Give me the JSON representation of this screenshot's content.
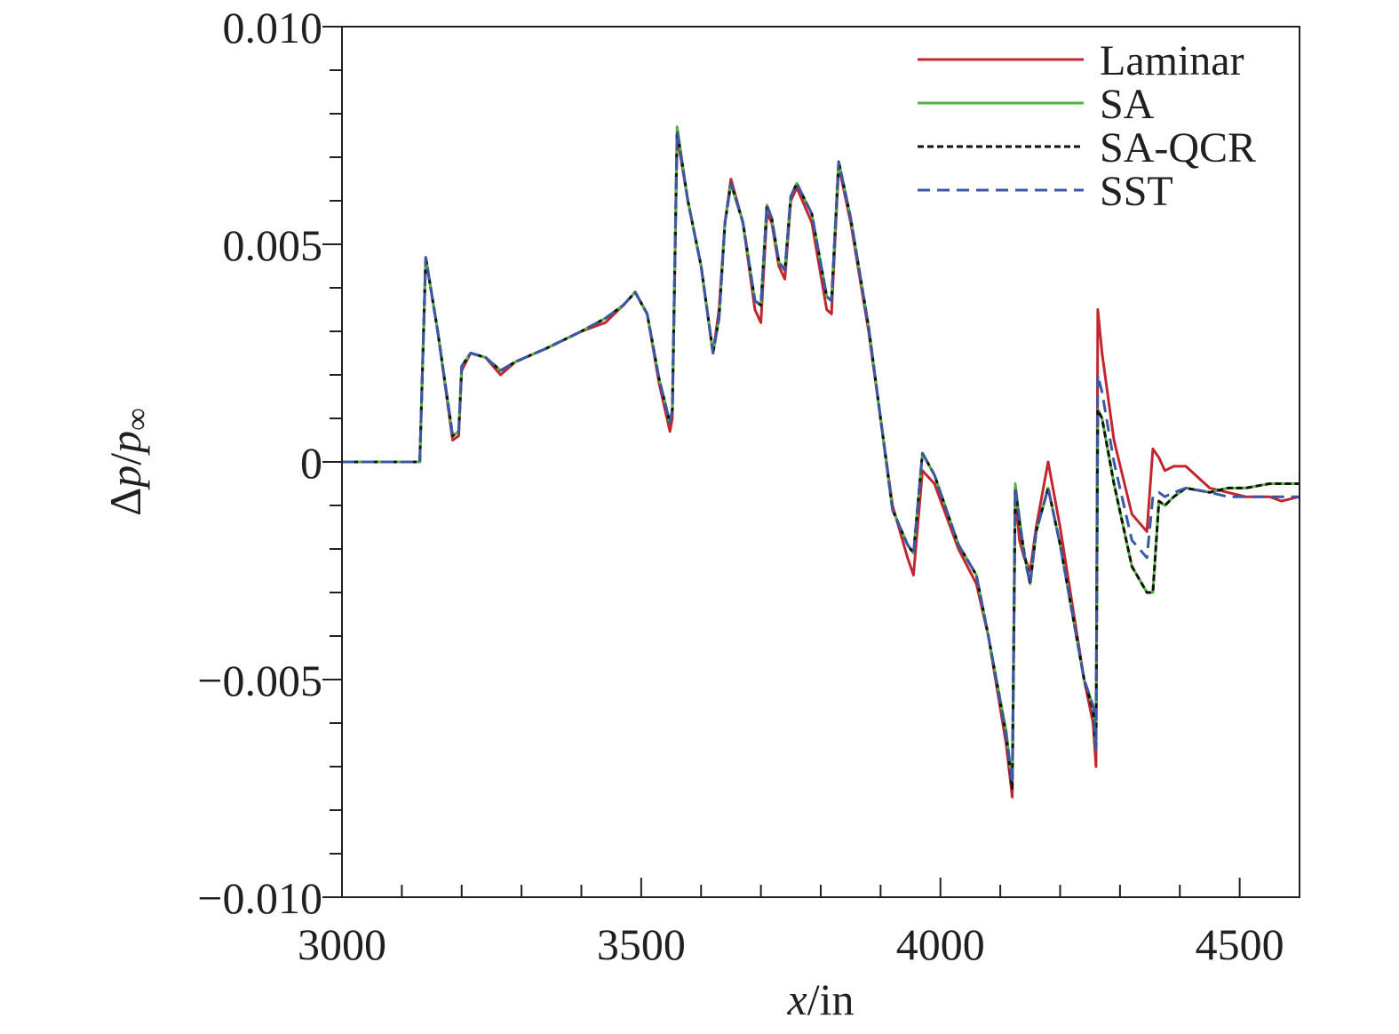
{
  "chart_data": {
    "type": "line",
    "title": "",
    "xlabel": {
      "var": "x",
      "unit": "/in"
    },
    "ylabel": {
      "delta": "Δ",
      "var": "p",
      "slash": "/",
      "var2": "p",
      "sub": "∞"
    },
    "xlim": [
      3000,
      4600
    ],
    "ylim": [
      -0.01,
      0.01
    ],
    "x_ticks": [
      3000,
      3500,
      4000,
      4500
    ],
    "x_tick_labels": [
      "3000",
      "3500",
      "4000",
      "4500"
    ],
    "x_minor_step": 100,
    "y_ticks": [
      -0.01,
      -0.005,
      0,
      0.005,
      0.01
    ],
    "y_tick_labels": [
      "−0.010",
      "−0.005",
      "0",
      "0.005",
      "0.010"
    ],
    "y_minor_step": 0.001,
    "grid": false,
    "legend_position": "top-right",
    "series": [
      {
        "name": "Laminar",
        "color": "#c1272d",
        "dash": "solid",
        "x": [
          3000,
          3120,
          3130,
          3140,
          3160,
          3185,
          3195,
          3200,
          3215,
          3240,
          3265,
          3290,
          3340,
          3400,
          3440,
          3470,
          3490,
          3510,
          3530,
          3548,
          3552,
          3560,
          3578,
          3600,
          3620,
          3630,
          3640,
          3650,
          3670,
          3690,
          3700,
          3710,
          3718,
          3730,
          3740,
          3750,
          3760,
          3785,
          3810,
          3818,
          3830,
          3850,
          3880,
          3920,
          3945,
          3955,
          3970,
          3990,
          4030,
          4060,
          4080,
          4110,
          4120,
          4125,
          4132,
          4140,
          4150,
          4160,
          4180,
          4200,
          4240,
          4255,
          4260,
          4263,
          4270,
          4290,
          4320,
          4345,
          4355,
          4365,
          4375,
          4390,
          4410,
          4450,
          4480,
          4510,
          4550,
          4570,
          4600
        ],
        "y": [
          0,
          0,
          0,
          0.0047,
          0.003,
          0.0005,
          0.0006,
          0.0021,
          0.0025,
          0.0024,
          0.002,
          0.0023,
          0.0026,
          0.003,
          0.0032,
          0.0036,
          0.0039,
          0.0034,
          0.0018,
          0.0007,
          0.001,
          0.0075,
          0.006,
          0.0045,
          0.0025,
          0.0035,
          0.0055,
          0.0065,
          0.0055,
          0.0035,
          0.0032,
          0.0057,
          0.0055,
          0.0045,
          0.0042,
          0.006,
          0.0063,
          0.0055,
          0.0035,
          0.0034,
          0.0068,
          0.0055,
          0.003,
          -0.001,
          -0.0022,
          -0.0026,
          -0.0002,
          -0.0005,
          -0.002,
          -0.0028,
          -0.004,
          -0.0065,
          -0.0077,
          -0.0007,
          -0.0018,
          -0.0022,
          -0.0025,
          -0.0015,
          0,
          -0.0015,
          -0.005,
          -0.006,
          -0.007,
          0.0035,
          0.0025,
          0.0005,
          -0.0012,
          -0.0016,
          0.0003,
          0.0001,
          -0.0002,
          -0.0001,
          -0.0001,
          -0.0006,
          -0.0007,
          -0.0008,
          -0.0008,
          -0.0009,
          -0.0008
        ]
      },
      {
        "name": "SA",
        "color": "#4fb53d",
        "dash": "solid",
        "x": [
          3000,
          3120,
          3130,
          3140,
          3160,
          3185,
          3195,
          3200,
          3215,
          3240,
          3265,
          3290,
          3340,
          3400,
          3440,
          3470,
          3490,
          3510,
          3530,
          3548,
          3552,
          3560,
          3578,
          3600,
          3620,
          3630,
          3640,
          3650,
          3670,
          3690,
          3700,
          3710,
          3718,
          3730,
          3740,
          3750,
          3760,
          3785,
          3810,
          3818,
          3830,
          3850,
          3880,
          3920,
          3945,
          3955,
          3970,
          3990,
          4030,
          4060,
          4080,
          4110,
          4120,
          4125,
          4132,
          4140,
          4150,
          4160,
          4180,
          4200,
          4240,
          4255,
          4260,
          4263,
          4270,
          4290,
          4320,
          4345,
          4355,
          4365,
          4375,
          4390,
          4410,
          4450,
          4480,
          4510,
          4550,
          4570,
          4600
        ],
        "y": [
          0,
          0,
          0,
          0.0047,
          0.003,
          0.0006,
          0.0007,
          0.0022,
          0.0025,
          0.0024,
          0.0021,
          0.0023,
          0.0026,
          0.003,
          0.0033,
          0.0036,
          0.0039,
          0.0034,
          0.0019,
          0.0009,
          0.0012,
          0.0077,
          0.006,
          0.0045,
          0.0025,
          0.0033,
          0.0055,
          0.0064,
          0.0055,
          0.0037,
          0.0036,
          0.0059,
          0.0056,
          0.0046,
          0.0044,
          0.0061,
          0.0064,
          0.0057,
          0.0038,
          0.0037,
          0.0069,
          0.0056,
          0.0031,
          -0.0011,
          -0.0019,
          -0.0021,
          0.0002,
          -0.0003,
          -0.0019,
          -0.0026,
          -0.004,
          -0.0062,
          -0.0074,
          -0.0005,
          -0.0013,
          -0.0021,
          -0.0028,
          -0.0016,
          -0.0006,
          -0.0019,
          -0.005,
          -0.0056,
          -0.0066,
          0.0012,
          0.001,
          -0.0005,
          -0.0024,
          -0.003,
          -0.003,
          -0.0009,
          -0.001,
          -0.0008,
          -0.0006,
          -0.0007,
          -0.0006,
          -0.0006,
          -0.0005,
          -0.0005,
          -0.0005
        ]
      },
      {
        "name": "SA-QCR",
        "color": "#111111",
        "dash": "short",
        "x": [
          3000,
          3120,
          3130,
          3140,
          3160,
          3185,
          3195,
          3200,
          3215,
          3240,
          3265,
          3290,
          3340,
          3400,
          3440,
          3470,
          3490,
          3510,
          3530,
          3548,
          3552,
          3560,
          3578,
          3600,
          3620,
          3630,
          3640,
          3650,
          3670,
          3690,
          3700,
          3710,
          3718,
          3730,
          3740,
          3750,
          3760,
          3785,
          3810,
          3818,
          3830,
          3850,
          3880,
          3920,
          3945,
          3955,
          3970,
          3990,
          4030,
          4060,
          4080,
          4110,
          4120,
          4125,
          4132,
          4140,
          4150,
          4160,
          4180,
          4200,
          4240,
          4255,
          4260,
          4263,
          4270,
          4290,
          4320,
          4345,
          4355,
          4365,
          4375,
          4390,
          4410,
          4450,
          4480,
          4510,
          4550,
          4570,
          4600
        ],
        "y": [
          0,
          0,
          0,
          0.0047,
          0.003,
          0.0006,
          0.0007,
          0.0022,
          0.0025,
          0.0024,
          0.0021,
          0.0023,
          0.0026,
          0.003,
          0.0033,
          0.0036,
          0.0039,
          0.0034,
          0.0019,
          0.0009,
          0.0012,
          0.0076,
          0.006,
          0.0045,
          0.0025,
          0.0033,
          0.0055,
          0.0064,
          0.0055,
          0.0037,
          0.0036,
          0.0059,
          0.0056,
          0.0046,
          0.0044,
          0.0061,
          0.0064,
          0.0057,
          0.0038,
          0.0037,
          0.0069,
          0.0056,
          0.0031,
          -0.0011,
          -0.0019,
          -0.0021,
          0.0002,
          -0.0003,
          -0.0019,
          -0.0026,
          -0.004,
          -0.0063,
          -0.0075,
          -0.0006,
          -0.0014,
          -0.0021,
          -0.0028,
          -0.0016,
          -0.0006,
          -0.0019,
          -0.005,
          -0.0057,
          -0.0066,
          0.0012,
          0.001,
          -0.0005,
          -0.0024,
          -0.003,
          -0.003,
          -0.0009,
          -0.001,
          -0.0008,
          -0.0006,
          -0.0007,
          -0.0006,
          -0.0006,
          -0.0005,
          -0.0005,
          -0.0005
        ]
      },
      {
        "name": "SST",
        "color": "#3d56a6",
        "dash": "long",
        "x": [
          3000,
          3120,
          3130,
          3140,
          3160,
          3185,
          3195,
          3200,
          3215,
          3240,
          3265,
          3290,
          3340,
          3400,
          3440,
          3470,
          3490,
          3510,
          3530,
          3548,
          3552,
          3560,
          3578,
          3600,
          3620,
          3630,
          3640,
          3650,
          3670,
          3690,
          3700,
          3710,
          3718,
          3730,
          3740,
          3750,
          3760,
          3785,
          3810,
          3818,
          3830,
          3850,
          3880,
          3920,
          3945,
          3955,
          3970,
          3990,
          4030,
          4060,
          4080,
          4110,
          4120,
          4125,
          4132,
          4140,
          4150,
          4160,
          4180,
          4200,
          4240,
          4255,
          4260,
          4263,
          4270,
          4290,
          4320,
          4345,
          4355,
          4365,
          4375,
          4390,
          4410,
          4450,
          4480,
          4510,
          4550,
          4570,
          4600
        ],
        "y": [
          0,
          0,
          0,
          0.0047,
          0.003,
          0.0006,
          0.0007,
          0.0022,
          0.0025,
          0.0024,
          0.0021,
          0.0023,
          0.0026,
          0.003,
          0.0033,
          0.0036,
          0.0039,
          0.0034,
          0.0019,
          0.0009,
          0.0012,
          0.0076,
          0.006,
          0.0045,
          0.0025,
          0.0033,
          0.0055,
          0.0064,
          0.0055,
          0.0037,
          0.0036,
          0.0059,
          0.0056,
          0.0046,
          0.0044,
          0.0061,
          0.0064,
          0.0057,
          0.0038,
          0.0037,
          0.0069,
          0.0056,
          0.0031,
          -0.0011,
          -0.0019,
          -0.0021,
          0.0002,
          -0.0003,
          -0.0019,
          -0.0026,
          -0.004,
          -0.0063,
          -0.0074,
          -0.0006,
          -0.0013,
          -0.0022,
          -0.0028,
          -0.0016,
          -0.0006,
          -0.0019,
          -0.005,
          -0.0056,
          -0.0066,
          0.002,
          0.0016,
          0,
          -0.0018,
          -0.0022,
          -0.0008,
          -0.0007,
          -0.0008,
          -0.0007,
          -0.0006,
          -0.0007,
          -0.0008,
          -0.0008,
          -0.0008,
          -0.0008,
          -0.0008
        ]
      }
    ]
  }
}
